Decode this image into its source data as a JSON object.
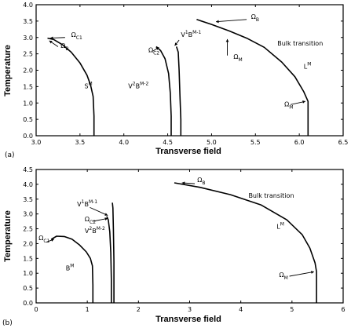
{
  "chart_data": [
    {
      "panel_label": "(a)",
      "type": "line",
      "xlabel": "Transverse field",
      "ylabel": "Temperature",
      "xlim": [
        3.0,
        6.5
      ],
      "ylim": [
        0.0,
        4.0
      ],
      "x_ticks": [
        "3.0",
        "3.5",
        "4.0",
        "4.5",
        "5.0",
        "5.5",
        "6.0",
        "6.5"
      ],
      "y_ticks": [
        "0.0",
        "0.5",
        "1.0",
        "1.5",
        "2.0",
        "2.5",
        "3.0",
        "3.5",
        "4.0"
      ],
      "series": [
        {
          "x": [
            3.13,
            3.2,
            3.3,
            3.4,
            3.5,
            3.58,
            3.62,
            3.65,
            3.66,
            3.66
          ],
          "y": [
            2.98,
            2.94,
            2.78,
            2.55,
            2.22,
            1.85,
            1.55,
            1.2,
            0.6,
            0.0
          ]
        },
        {
          "x": [
            4.37,
            4.42,
            4.47,
            4.51,
            4.53,
            4.54,
            4.54
          ],
          "y": [
            2.72,
            2.6,
            2.35,
            1.9,
            1.3,
            0.6,
            0.0
          ]
        },
        {
          "x": [
            4.6,
            4.62,
            4.63,
            4.64,
            4.65,
            4.65
          ],
          "y": [
            2.72,
            2.55,
            2.0,
            1.2,
            0.5,
            0.0
          ]
        },
        {
          "x": [
            4.83,
            5.0,
            5.2,
            5.4,
            5.6,
            5.8,
            5.95,
            6.05,
            6.1,
            6.1
          ],
          "y": [
            3.55,
            3.4,
            3.2,
            2.98,
            2.7,
            2.25,
            1.8,
            1.35,
            1.05,
            0.0
          ]
        }
      ],
      "annotations": {
        "omega_c1": {
          "text": "Ω",
          "sub": "C1",
          "x": 3.4,
          "y": 3.02
        },
        "omega_b_left": {
          "text": "Ω",
          "sub": "B",
          "x": 3.28,
          "y": 2.68
        },
        "region_S": {
          "text": "S",
          "sup": "M",
          "x": 3.55,
          "y": 1.45
        },
        "v2b": {
          "text": "V",
          "sup": "2",
          "mid": "B",
          "sup2": "M-2",
          "x": 4.05,
          "y": 1.45
        },
        "v1b": {
          "text": "V",
          "sup": "1",
          "mid": "B",
          "sup2": "M-1",
          "x": 4.65,
          "y": 3.02
        },
        "omega_c2": {
          "text": "Ω",
          "sub": "C2",
          "x": 4.28,
          "y": 2.55
        },
        "omega_b_top": {
          "text": "Ω",
          "sub": "B",
          "x": 5.45,
          "y": 3.57
        },
        "omega_m": {
          "text": "Ω",
          "sub": "M",
          "x": 5.25,
          "y": 2.35
        },
        "bulk": {
          "text": "Bulk transition",
          "x": 5.75,
          "y": 2.75
        },
        "region_L": {
          "text": "L",
          "sup": "M",
          "x": 6.05,
          "y": 2.05
        },
        "omega_m_right": {
          "text": "Ω",
          "sub": "M",
          "x": 5.83,
          "y": 0.9
        }
      }
    },
    {
      "panel_label": "(b)",
      "type": "line",
      "xlabel": "Transverse field",
      "ylabel": "Temperature",
      "xlim": [
        0,
        6
      ],
      "ylim": [
        0.0,
        4.5
      ],
      "x_ticks": [
        "0",
        "1",
        "2",
        "3",
        "4",
        "5",
        "6"
      ],
      "y_ticks": [
        "0.0",
        "0.5",
        "1.0",
        "1.5",
        "2.0",
        "2.5",
        "3.0",
        "3.5",
        "4.0",
        "4.5"
      ],
      "series": [
        {
          "x": [
            0.3,
            0.4,
            0.55,
            0.7,
            0.85,
            0.98,
            1.06,
            1.1,
            1.11,
            1.11
          ],
          "y": [
            2.15,
            2.25,
            2.24,
            2.15,
            1.95,
            1.72,
            1.5,
            1.25,
            0.6,
            0.0
          ]
        },
        {
          "x": [
            1.38,
            1.41,
            1.44,
            1.46,
            1.47,
            1.47
          ],
          "y": [
            2.92,
            2.8,
            2.4,
            1.7,
            0.8,
            0.0
          ]
        },
        {
          "x": [
            1.49,
            1.5,
            1.51,
            1.52,
            1.52
          ],
          "y": [
            3.38,
            3.2,
            2.5,
            1.4,
            0.0
          ]
        },
        {
          "x": [
            2.7,
            3.2,
            3.8,
            4.4,
            4.9,
            5.2,
            5.35,
            5.45,
            5.48,
            5.48
          ],
          "y": [
            4.05,
            3.9,
            3.65,
            3.3,
            2.8,
            2.3,
            1.85,
            1.35,
            1.05,
            0.0
          ]
        }
      ],
      "annotations": {
        "omega_c1": {
          "text": "Ω",
          "sub": "C1",
          "x": 0.05,
          "y": 2.12
        },
        "v1b": {
          "text": "V",
          "sup": "1",
          "mid": "B",
          "sup2": "M-1",
          "x": 0.8,
          "y": 3.25
        },
        "omega_c2": {
          "text": "Ω",
          "sub": "C2",
          "x": 0.95,
          "y": 2.75
        },
        "v2b": {
          "text": "V",
          "sup": "2",
          "mid": "B",
          "sup2": "M-2",
          "x": 0.95,
          "y": 2.35
        },
        "region_S": {
          "text": "B",
          "sup": "M",
          "x": 0.58,
          "y": 1.1
        },
        "omega_b_top": {
          "text": "Ω",
          "sub": "B",
          "x": 3.15,
          "y": 4.08
        },
        "bulk": {
          "text": "Bulk transition",
          "x": 4.15,
          "y": 3.55
        },
        "region_L": {
          "text": "L",
          "sup": "M",
          "x": 4.7,
          "y": 2.5
        },
        "omega_m_right": {
          "text": "Ω",
          "sub": "M",
          "x": 4.75,
          "y": 0.88
        }
      }
    }
  ]
}
